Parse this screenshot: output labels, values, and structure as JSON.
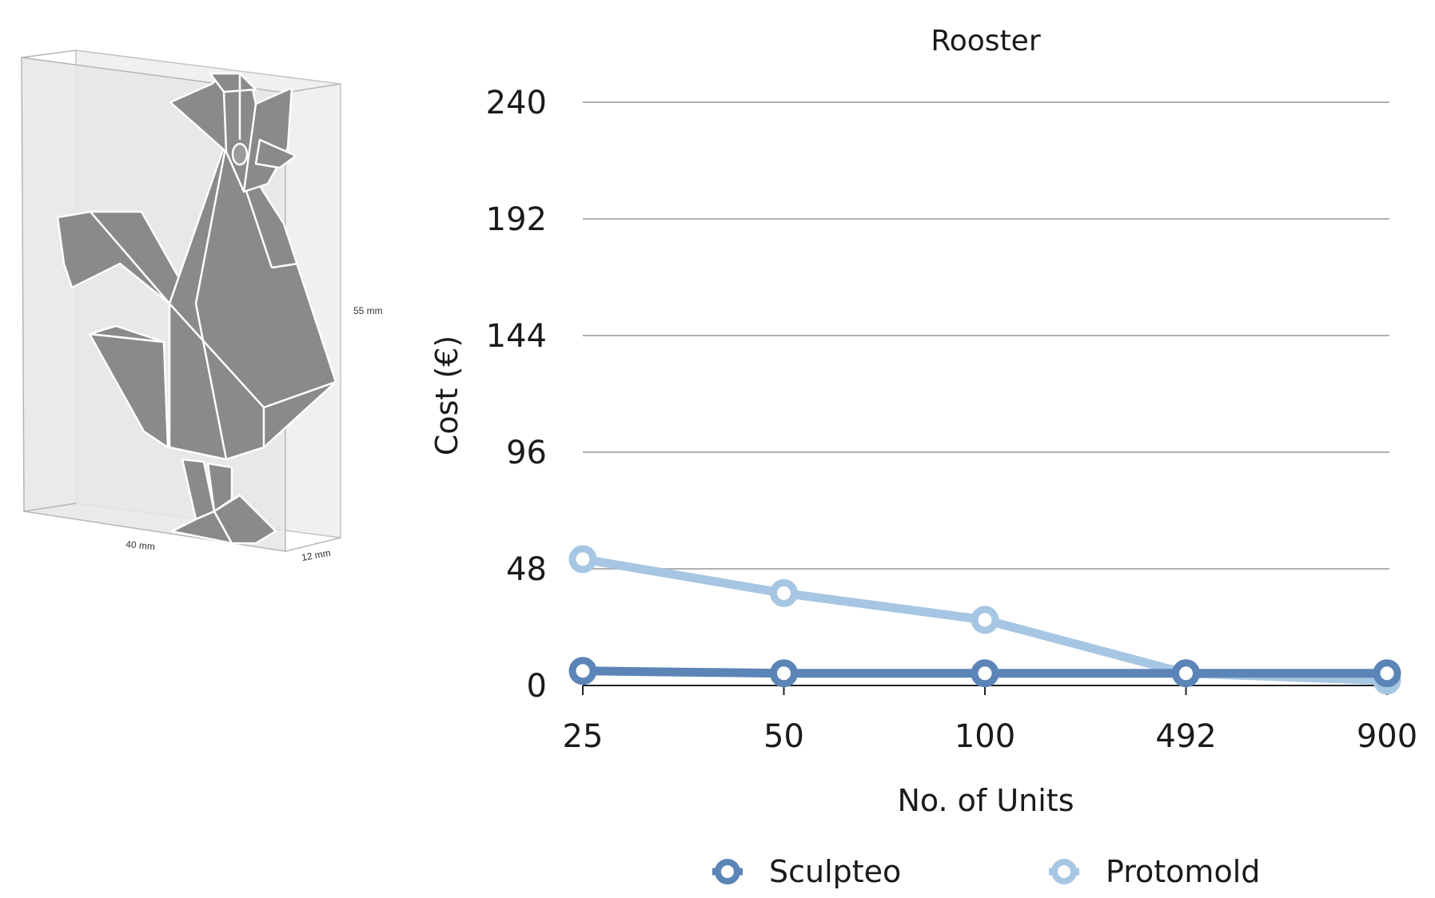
{
  "illustration": {
    "dimension_width": "40 mm",
    "dimension_depth": "12 mm",
    "dimension_height": "55 mm",
    "colors": {
      "box_fill": "#ececec",
      "box_edge": "#b8b8b8",
      "rooster_fill": "#8a8a8a",
      "rooster_line": "#ffffff"
    }
  },
  "chart_data": {
    "type": "line",
    "title": "Rooster",
    "xlabel": "No. of Units",
    "ylabel": "Cost (€)",
    "categories": [
      "25",
      "50",
      "100",
      "492",
      "900"
    ],
    "y_ticks": [
      "0",
      "48",
      "96",
      "144",
      "192",
      "240"
    ],
    "ylim": [
      0,
      240
    ],
    "grid": true,
    "legend_position": "bottom",
    "series": [
      {
        "name": "Protomold",
        "color": "#a6c6e3",
        "values": [
          52,
          38,
          27,
          5,
          2
        ]
      },
      {
        "name": "Sculpteo",
        "color": "#5b84b7",
        "values": [
          6,
          5,
          5,
          5,
          5
        ]
      }
    ]
  }
}
